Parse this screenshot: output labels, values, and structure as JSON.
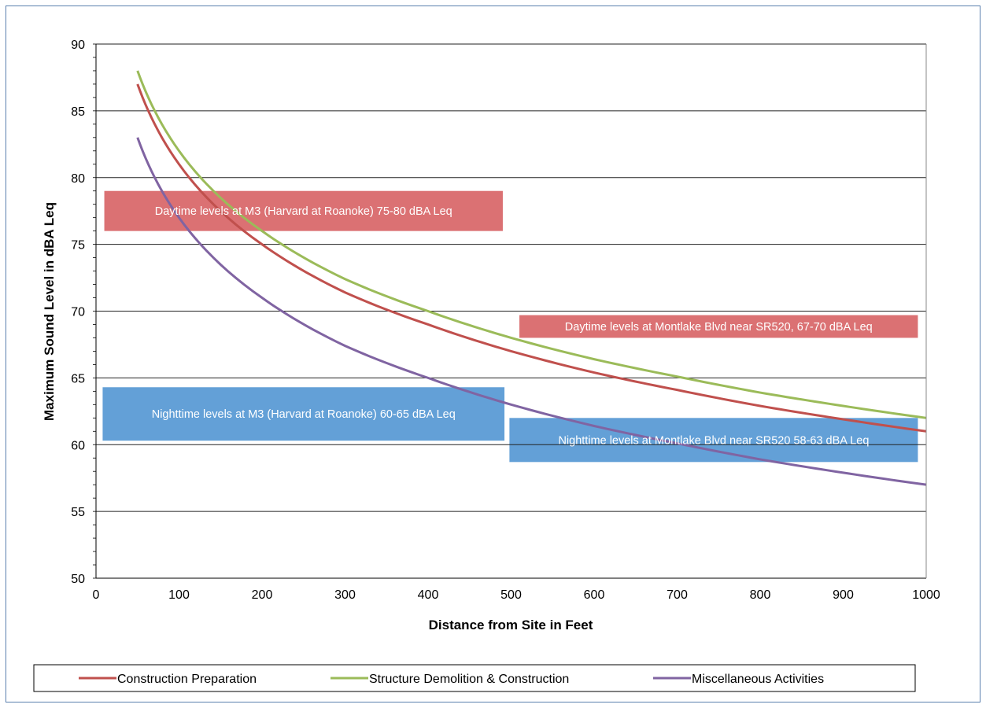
{
  "chart_data": {
    "type": "line",
    "title": "",
    "xlabel": "Distance from Site in Feet",
    "ylabel": "Maximum Sound Level in dBA Leq",
    "xlim": [
      0,
      1000
    ],
    "ylim": [
      50,
      90
    ],
    "x_ticks": [
      "0",
      "100",
      "200",
      "300",
      "400",
      "500",
      "600",
      "700",
      "800",
      "900",
      "1000"
    ],
    "y_ticks": [
      "50",
      "55",
      "60",
      "65",
      "70",
      "75",
      "80",
      "85",
      "90"
    ],
    "grid": "horizontal",
    "legend_position": "bottom",
    "x": [
      50,
      100,
      200,
      300,
      400,
      500,
      600,
      700,
      800,
      900,
      1000
    ],
    "series": [
      {
        "name": "Construction Preparation",
        "color": "#c0504d",
        "values": [
          87.0,
          81.0,
          75.0,
          71.4,
          69.0,
          67.0,
          65.4,
          64.1,
          62.9,
          61.9,
          61.0
        ]
      },
      {
        "name": "Structure Demolition & Construction",
        "color": "#9bbb59",
        "values": [
          88.0,
          82.0,
          76.0,
          72.4,
          70.0,
          68.0,
          66.4,
          65.1,
          63.9,
          62.9,
          62.0
        ]
      },
      {
        "name": "Miscellaneous Activities",
        "color": "#8064a2",
        "values": [
          83.0,
          77.0,
          71.0,
          67.4,
          65.0,
          63.0,
          61.4,
          60.1,
          58.9,
          57.9,
          57.0
        ]
      }
    ],
    "annotations": [
      {
        "id": "day-m3",
        "text": "Daytime levels at M3 (Harvard at Roanoke) 75-80 dBA Leq",
        "x_range": [
          10,
          490
        ],
        "y_range": [
          76,
          79
        ],
        "color": "#d9696b"
      },
      {
        "id": "day-montlake",
        "text": "Daytime levels at Montlake Blvd near SR520, 67-70 dBA Leq",
        "x_range": [
          510,
          990
        ],
        "y_range": [
          68,
          69.7
        ],
        "color": "#d9696b"
      },
      {
        "id": "night-m3",
        "text": "Nighttime levels at M3 (Harvard at Roanoke) 60-65 dBA Leq",
        "x_range": [
          8,
          492
        ],
        "y_range": [
          60.3,
          64.3
        ],
        "color": "#5b9bd5"
      },
      {
        "id": "night-montlake",
        "text": "Nighttime levels at Montlake Blvd near SR520 58-63 dBA Leq",
        "x_range": [
          498,
          990
        ],
        "y_range": [
          58.7,
          62
        ],
        "color": "#5b9bd5"
      }
    ]
  }
}
